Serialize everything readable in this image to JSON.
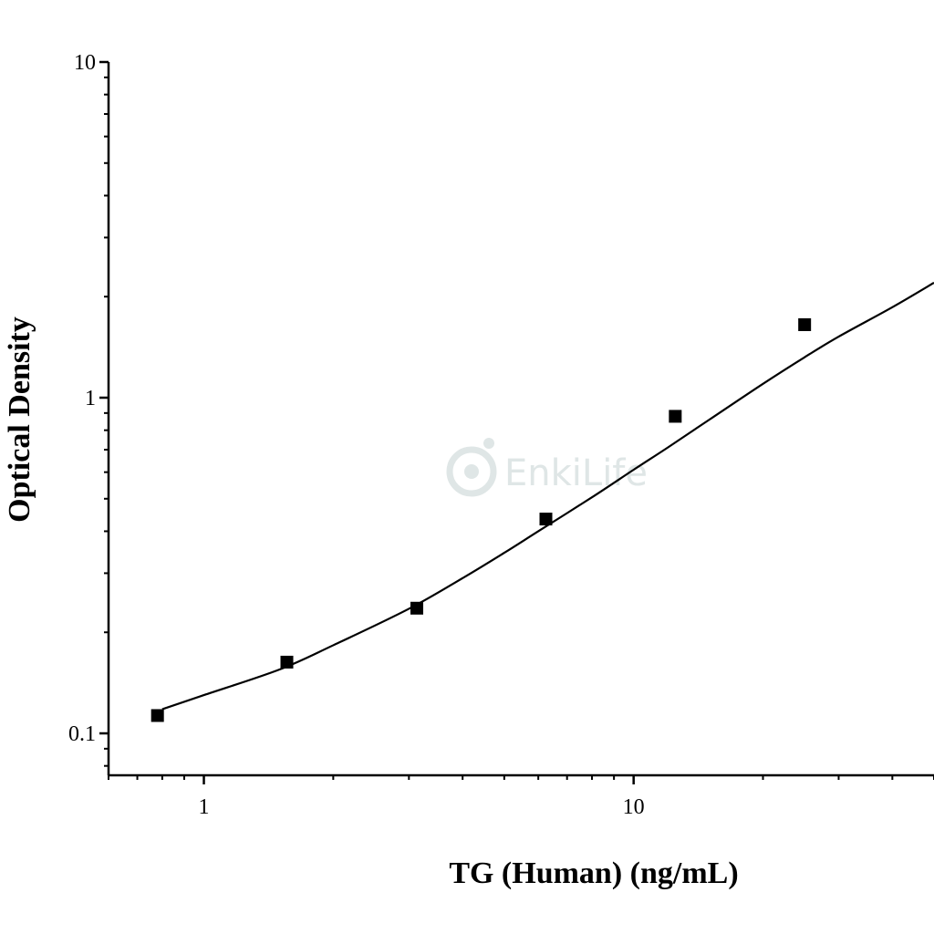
{
  "chart_data": {
    "type": "scatter",
    "xlabel": "TG (Human) (ng/mL)",
    "ylabel": "Optical Density",
    "x_scale": "log",
    "y_scale": "log",
    "xlim": [
      0.6,
      50
    ],
    "ylim": [
      0.075,
      10
    ],
    "x_ticks": [
      {
        "value": 1,
        "label": "1"
      },
      {
        "value": 10,
        "label": "10"
      }
    ],
    "y_ticks": [
      {
        "value": 0.1,
        "label": "0.1"
      },
      {
        "value": 1,
        "label": "1"
      },
      {
        "value": 10,
        "label": "10"
      }
    ],
    "series": [
      {
        "marker": "square",
        "color": "#000000",
        "points": [
          {
            "x": 0.78,
            "y": 0.113
          },
          {
            "x": 1.56,
            "y": 0.163
          },
          {
            "x": 3.13,
            "y": 0.236
          },
          {
            "x": 6.25,
            "y": 0.435
          },
          {
            "x": 12.5,
            "y": 0.88
          },
          {
            "x": 25,
            "y": 1.65
          }
        ]
      }
    ],
    "fit_curve": {
      "color": "#000000",
      "x": [
        0.8,
        1,
        1.5,
        2,
        3,
        4,
        5,
        6,
        8,
        10,
        12,
        15,
        20,
        25,
        30,
        40,
        50
      ],
      "y": [
        0.118,
        0.13,
        0.155,
        0.183,
        0.235,
        0.29,
        0.345,
        0.4,
        0.505,
        0.61,
        0.71,
        0.86,
        1.1,
        1.32,
        1.52,
        1.86,
        2.2
      ]
    },
    "grid": false,
    "legend": "none"
  },
  "watermark": {
    "text": "EnkiLife",
    "logo_icon": "enkilife-logo-icon"
  }
}
